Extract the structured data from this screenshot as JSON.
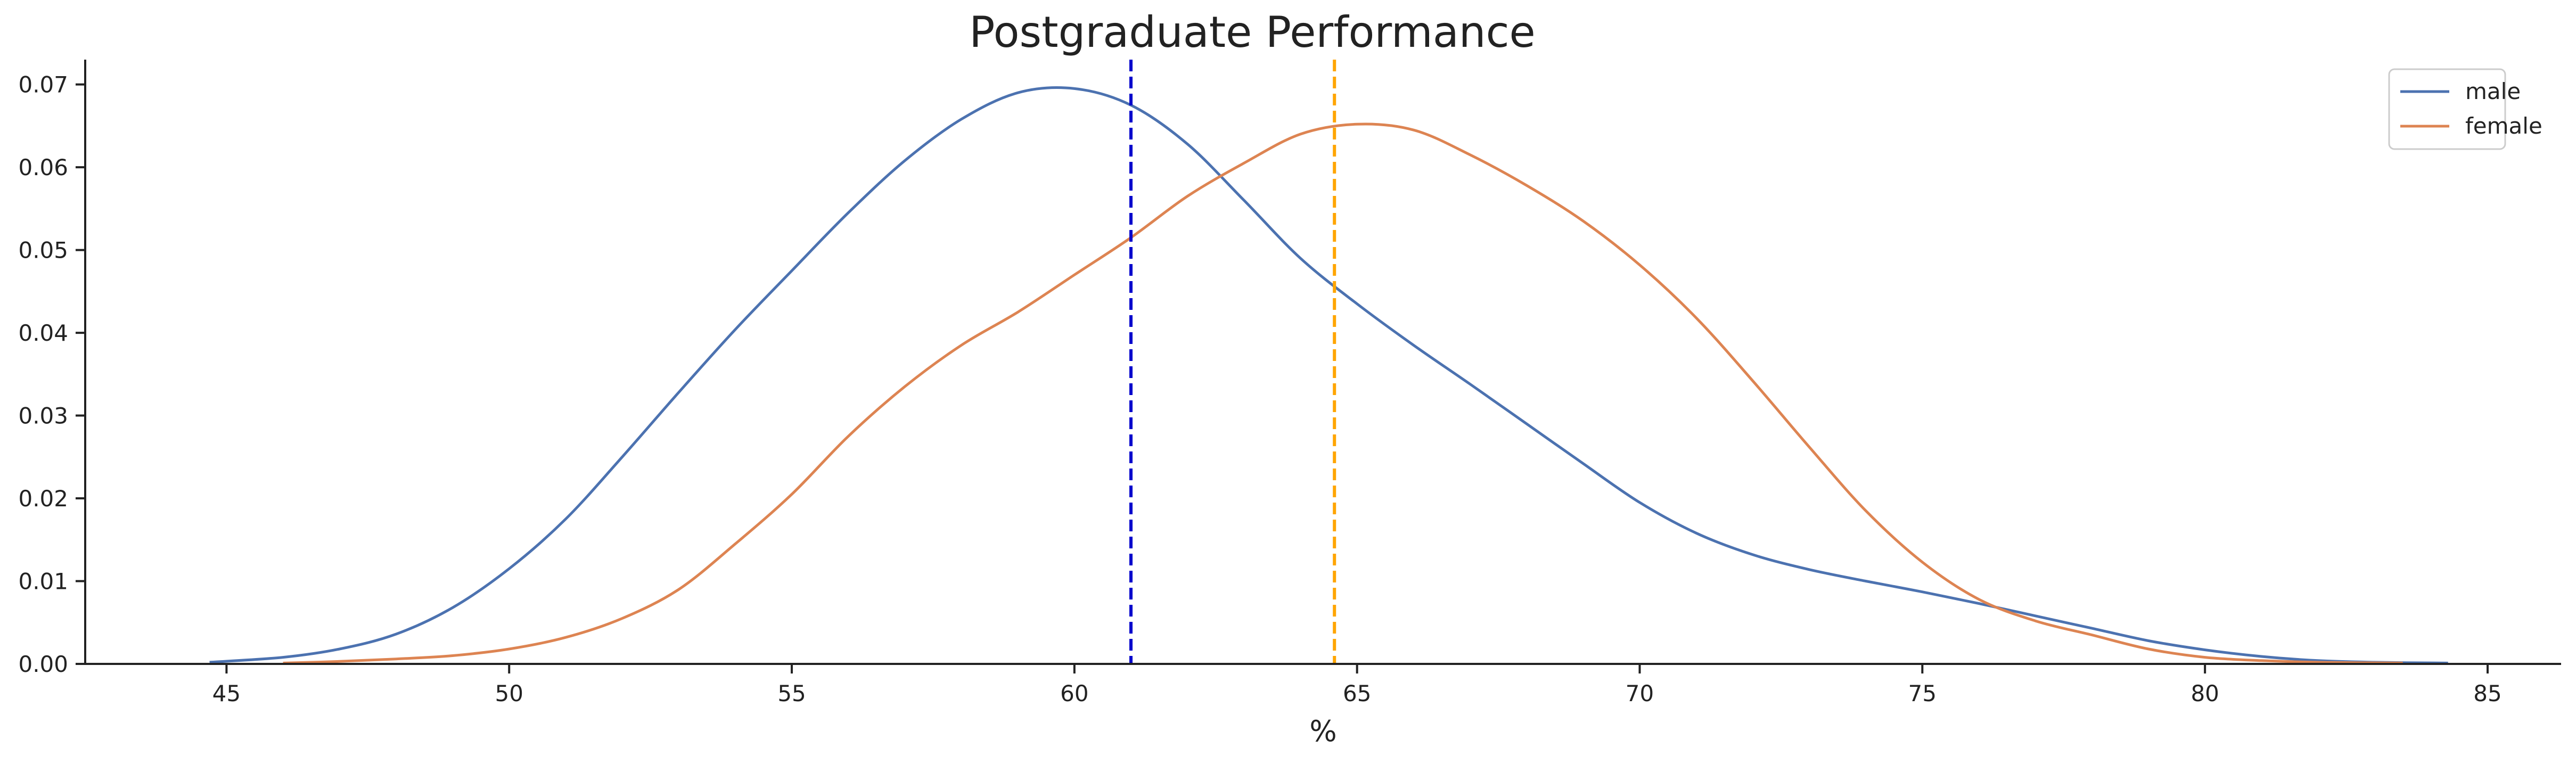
{
  "chart_data": {
    "type": "line",
    "title": "Postgraduate Performance",
    "xlabel": "%",
    "ylabel": "",
    "xlim": [
      42.5,
      86.3
    ],
    "ylim": [
      0,
      0.073
    ],
    "xticks": [
      45,
      50,
      55,
      60,
      65,
      70,
      75,
      80,
      85
    ],
    "yticks": [
      0.0,
      0.01,
      0.02,
      0.03,
      0.04,
      0.05,
      0.06,
      0.07
    ],
    "xtick_labels": [
      "45",
      "50",
      "55",
      "60",
      "65",
      "70",
      "75",
      "80",
      "85"
    ],
    "ytick_labels": [
      "0.00",
      "0.01",
      "0.02",
      "0.03",
      "0.04",
      "0.05",
      "0.06",
      "0.07"
    ],
    "grid": false,
    "legend_position": "top-right",
    "series": [
      {
        "name": "male",
        "color": "#4c72b0",
        "x": [
          44.7,
          46,
          47,
          48,
          49,
          50,
          51,
          52,
          53,
          54,
          55,
          56,
          57,
          58,
          59,
          60,
          61,
          62,
          63,
          64,
          65,
          66,
          67,
          68,
          69,
          70,
          71,
          72,
          73,
          74,
          75,
          76,
          77,
          78,
          79,
          80,
          81,
          82,
          83,
          84.3
        ],
        "y": [
          0.0002,
          0.0008,
          0.0018,
          0.0036,
          0.0068,
          0.0115,
          0.0175,
          0.025,
          0.0328,
          0.0404,
          0.0475,
          0.0545,
          0.0608,
          0.0658,
          0.069,
          0.0695,
          0.0675,
          0.0628,
          0.056,
          0.049,
          0.0435,
          0.0385,
          0.0338,
          0.029,
          0.0242,
          0.0195,
          0.0158,
          0.0132,
          0.0114,
          0.01,
          0.0087,
          0.0073,
          0.0058,
          0.0043,
          0.0028,
          0.0017,
          0.0009,
          0.0004,
          0.0002,
          0.0001
        ]
      },
      {
        "name": "female",
        "color": "#dd8452",
        "x": [
          46,
          47,
          48,
          49,
          50,
          51,
          52,
          53,
          54,
          55,
          56,
          57,
          58,
          59,
          60,
          61,
          62,
          63,
          64,
          65,
          66,
          67,
          68,
          69,
          70,
          71,
          72,
          73,
          74,
          75,
          76,
          77,
          78,
          79,
          80,
          81,
          82,
          83.5
        ],
        "y": [
          0.0001,
          0.0003,
          0.0006,
          0.001,
          0.0018,
          0.0032,
          0.0055,
          0.009,
          0.0145,
          0.0205,
          0.0275,
          0.0335,
          0.0385,
          0.0425,
          0.047,
          0.0515,
          0.0565,
          0.0605,
          0.064,
          0.0652,
          0.0645,
          0.0615,
          0.0578,
          0.0535,
          0.0482,
          0.0418,
          0.0342,
          0.0262,
          0.0185,
          0.0123,
          0.0078,
          0.0052,
          0.0035,
          0.0018,
          0.0008,
          0.0004,
          0.0002,
          0.0001
        ]
      }
    ],
    "reference_lines": [
      {
        "x": 61.0,
        "color": "#0000cc",
        "style": "dashed"
      },
      {
        "x": 64.6,
        "color": "#ffa500",
        "style": "dashed"
      }
    ]
  }
}
